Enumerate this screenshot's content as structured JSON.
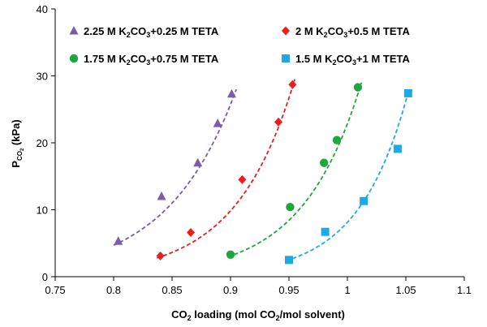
{
  "chart_data": {
    "type": "scatter",
    "xlabel": {
      "pre": "CO",
      "sub": "2",
      "post": " loading (mol CO",
      "sub2": "2",
      "post2": "/mol solvent)"
    },
    "ylabel": {
      "main": "P",
      "sub": "CO",
      "sub2": "2",
      "post": " (kPa)"
    },
    "xlim": [
      0.75,
      1.1
    ],
    "ylim": [
      0,
      40
    ],
    "xticks": [
      "0.75",
      "0.8",
      "0.85",
      "0.9",
      "0.95",
      "1",
      "1.05",
      "1.1"
    ],
    "yticks": [
      "0",
      "10",
      "20",
      "30",
      "40"
    ],
    "grid": false,
    "legend_placement": "top",
    "series": [
      {
        "name_parts": [
          "2.25 M K",
          "2",
          "CO",
          "3",
          "+0.25 M TETA"
        ],
        "marker": "triangle",
        "color": "#7b5ea7",
        "x": [
          0.804,
          0.841,
          0.872,
          0.889,
          0.901
        ],
        "y": [
          5.3,
          12.0,
          17.0,
          22.9,
          27.3
        ],
        "fit_x": [
          0.8,
          0.905
        ],
        "fit_y": [
          4.7,
          28.0
        ]
      },
      {
        "name_parts": [
          "2 M K",
          "2",
          "CO",
          "3",
          "+0.5 M TETA"
        ],
        "marker": "diamond",
        "color": "#ee1c1c",
        "x": [
          0.84,
          0.866,
          0.91,
          0.941,
          0.953
        ],
        "y": [
          3.1,
          6.6,
          14.5,
          23.1,
          28.7
        ],
        "fit_x": [
          0.837,
          0.955
        ],
        "fit_y": [
          2.8,
          29.5
        ]
      },
      {
        "name_parts": [
          "1.75 M K",
          "2",
          "CO",
          "3",
          "+0.75 M TETA"
        ],
        "marker": "circle",
        "color": "#1ea83c",
        "x": [
          0.9,
          0.951,
          0.98,
          0.991,
          1.009
        ],
        "y": [
          3.3,
          10.4,
          17.0,
          20.4,
          28.3
        ],
        "fit_x": [
          0.903,
          1.012
        ],
        "fit_y": [
          3.3,
          29.0
        ]
      },
      {
        "name_parts": [
          "1.5 M K",
          "2",
          "CO",
          "3",
          "+1 M TETA"
        ],
        "marker": "square",
        "color": "#1ea9e6",
        "x": [
          0.95,
          0.981,
          1.014,
          1.043,
          1.052
        ],
        "y": [
          2.5,
          6.7,
          11.3,
          19.1,
          27.4
        ],
        "fit_x": [
          0.953,
          1.052
        ],
        "fit_y": [
          2.7,
          27.5
        ]
      }
    ]
  }
}
